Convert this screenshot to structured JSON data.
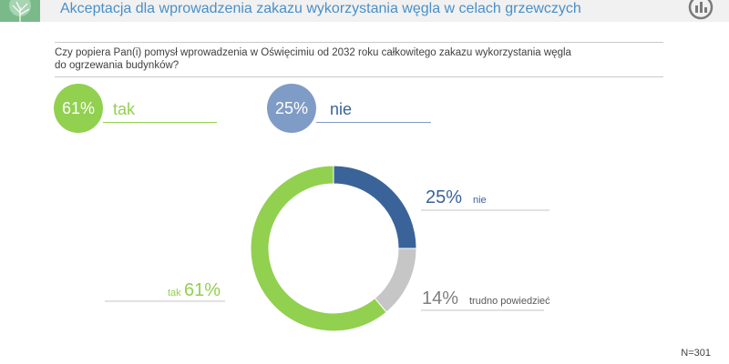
{
  "header": {
    "title": "Akceptacja dla wprowadzenia zakazu wykorzystania węgla w celach grzewczych"
  },
  "question": "Czy popiera Pan(i) pomysł wprowadzenia w Oświęcimiu od 2032 roku całkowitego zakazu wykorzystania węgla do ogrzewania budynków?",
  "summary": [
    {
      "value": "61%",
      "label": "tak",
      "color": "#92d050"
    },
    {
      "value": "25%",
      "label": "nie",
      "color": "#7f9cc6"
    }
  ],
  "chart_data": {
    "type": "pie",
    "donut": true,
    "series": [
      {
        "name": "nie",
        "value": 25,
        "label": "25%",
        "color": "#3a6399"
      },
      {
        "name": "trudno powiedzieć",
        "value": 14,
        "label": "14%",
        "color": "#c6c6c6"
      },
      {
        "name": "tak",
        "value": 61,
        "label": "61%",
        "color": "#92d050"
      }
    ]
  },
  "sample": "N=301"
}
